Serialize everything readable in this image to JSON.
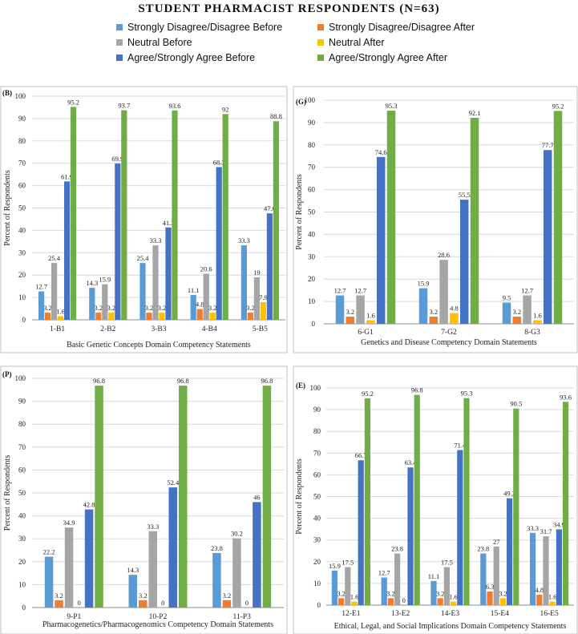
{
  "title": "STUDENT PHARMACIST RESPONDENTS (N=63)",
  "legend": [
    {
      "label": "Strongly Disagree/Disagree Before",
      "color": "#5b9bd5"
    },
    {
      "label": "Strongly Disagree/Disagree After",
      "color": "#ed7d31"
    },
    {
      "label": "Neutral Before",
      "color": "#a5a5a5"
    },
    {
      "label": "Neutral After",
      "color": "#ffc000"
    },
    {
      "label": "Agree/Strongly Agree Before",
      "color": "#4472c4"
    },
    {
      "label": "Agree/Strongly Agree After",
      "color": "#70ad47"
    }
  ],
  "chart_data": [
    {
      "type": "bar",
      "panel_label": "(B)",
      "xlabel": "Basic Genetic Concepts Domain Competency Statements",
      "ylabel": "Percent of Respondents",
      "ylim": [
        0,
        100
      ],
      "yticks": [
        "0",
        "10",
        "20",
        "30",
        "40",
        "50",
        "60",
        "70",
        "80",
        "90",
        "100"
      ],
      "categories": [
        "1-B1",
        "2-B2",
        "3-B3",
        "4-B4",
        "5-B5"
      ],
      "series": [
        {
          "name": "Strongly Disagree/Disagree Before",
          "values": [
            12.7,
            14.3,
            25.4,
            11.1,
            33.3
          ],
          "labels": [
            "12.7",
            "14.3",
            "25.4",
            "11.1",
            "33.3"
          ]
        },
        {
          "name": "Strongly Disagree/Disagree After",
          "values": [
            3.2,
            3.2,
            3.2,
            4.8,
            3.2
          ],
          "labels": [
            "3.2",
            "3.2",
            "3.2",
            "4.8",
            "3.2"
          ]
        },
        {
          "name": "Neutral Before",
          "values": [
            25.4,
            15.9,
            33.3,
            20.6,
            19
          ],
          "labels": [
            "25.4",
            "15.9",
            "33.3",
            "20.6",
            "19"
          ]
        },
        {
          "name": "Neutral After",
          "values": [
            1.6,
            3.2,
            3.2,
            3.2,
            7.9
          ],
          "labels": [
            "1.6",
            "3.2",
            "3.2",
            "3.2",
            "7.9"
          ]
        },
        {
          "name": "Agree/Strongly Agree Before",
          "values": [
            61.9,
            69.9,
            41.3,
            68.3,
            47.6
          ],
          "labels": [
            "61.9",
            "69.9",
            "41.3",
            "68.3",
            "47.6"
          ]
        },
        {
          "name": "Agree/Strongly Agree After",
          "values": [
            95.2,
            93.7,
            93.6,
            92,
            88.8
          ],
          "labels": [
            "95.2",
            "93.7",
            "93.6",
            "92",
            "88.8"
          ]
        }
      ]
    },
    {
      "type": "bar",
      "panel_label": "(G)",
      "xlabel": "Genetics and Disease Competency Domain Statements",
      "ylabel": "Percent of Respondents",
      "ylim": [
        0,
        100
      ],
      "yticks": [
        "0",
        "10",
        "20",
        "30",
        "40",
        "50",
        "60",
        "70",
        "80",
        "90",
        "100"
      ],
      "categories": [
        "6-G1",
        "7-G2",
        "8-G3"
      ],
      "series": [
        {
          "name": "Strongly Disagree/Disagree Before",
          "values": [
            12.7,
            15.9,
            9.5
          ],
          "labels": [
            "12.7",
            "15.9",
            "9.5"
          ]
        },
        {
          "name": "Strongly Disagree/Disagree After",
          "values": [
            3.2,
            3.2,
            3.2
          ],
          "labels": [
            "3.2",
            "3.2",
            "3.2"
          ]
        },
        {
          "name": "Neutral Before",
          "values": [
            12.7,
            28.6,
            12.7
          ],
          "labels": [
            "12.7",
            "28.6",
            "12.7"
          ]
        },
        {
          "name": "Neutral After",
          "values": [
            1.6,
            4.8,
            1.6
          ],
          "labels": [
            "1.6",
            "4.8",
            "1.6"
          ]
        },
        {
          "name": "Agree/Strongly Agree Before",
          "values": [
            74.6,
            55.5,
            77.7
          ],
          "labels": [
            "74.6",
            "55.5",
            "77.7"
          ]
        },
        {
          "name": "Agree/Strongly Agree After",
          "values": [
            95.3,
            92.1,
            95.2
          ],
          "labels": [
            "95.3",
            "92.1",
            "95.2"
          ]
        }
      ]
    },
    {
      "type": "bar",
      "panel_label": "(P)",
      "xlabel": "Pharmacogenetics/Pharmacogenomics Competency Domain Statements",
      "ylabel": "Percent of Respondents",
      "ylim": [
        0,
        100
      ],
      "yticks": [
        "0",
        "10",
        "20",
        "30",
        "40",
        "50",
        "60",
        "70",
        "80",
        "90",
        "100"
      ],
      "categories": [
        "9-P1",
        "10-P2",
        "11-P3"
      ],
      "series": [
        {
          "name": "Strongly Disagree/Disagree Before",
          "values": [
            22.2,
            14.3,
            23.8
          ],
          "labels": [
            "22.2",
            "14.3",
            "23.8"
          ]
        },
        {
          "name": "Strongly Disagree/Disagree After",
          "values": [
            3.2,
            3.2,
            3.2
          ],
          "labels": [
            "3.2",
            "3.2",
            "3.2"
          ]
        },
        {
          "name": "Neutral Before",
          "values": [
            34.9,
            33.3,
            30.2
          ],
          "labels": [
            "34.9",
            "33.3",
            "30.2"
          ]
        },
        {
          "name": "Neutral After",
          "values": [
            0,
            0,
            0
          ],
          "labels": [
            "0",
            "0",
            "0"
          ]
        },
        {
          "name": "Agree/Strongly Agree Before",
          "values": [
            42.8,
            52.4,
            46
          ],
          "labels": [
            "42.8",
            "52.4",
            "46"
          ]
        },
        {
          "name": "Agree/Strongly Agree After",
          "values": [
            96.8,
            96.8,
            96.8
          ],
          "labels": [
            "96.8",
            "96.8",
            "96.8"
          ]
        }
      ]
    },
    {
      "type": "bar",
      "panel_label": "(E)",
      "xlabel": "Ethical, Legal, and Social Implications Domain Competency Statements",
      "ylabel": "Percent of Respondents",
      "ylim": [
        0,
        100
      ],
      "yticks": [
        "0",
        "10",
        "20",
        "30",
        "40",
        "50",
        "60",
        "70",
        "80",
        "90",
        "100"
      ],
      "categories": [
        "12-E1",
        "13-E2",
        "14-E3",
        "15-E4",
        "16-E5"
      ],
      "series": [
        {
          "name": "Strongly Disagree/Disagree Before",
          "values": [
            15.9,
            12.7,
            11.1,
            23.8,
            33.3
          ],
          "labels": [
            "15.9",
            "12.7",
            "11.1",
            "23.8",
            "33.3"
          ]
        },
        {
          "name": "Strongly Disagree/Disagree After",
          "values": [
            3.2,
            3.2,
            3.2,
            6.3,
            4.8
          ],
          "labels": [
            "3.2",
            "3.2",
            "3.2",
            "6.3",
            "4.8"
          ]
        },
        {
          "name": "Neutral Before",
          "values": [
            17.5,
            23.8,
            17.5,
            27,
            31.7
          ],
          "labels": [
            "17.5",
            "23.8",
            "17.5",
            "27",
            "31.7"
          ]
        },
        {
          "name": "Neutral After",
          "values": [
            1.6,
            0,
            1.6,
            3.2,
            1.6
          ],
          "labels": [
            "1.6",
            "0",
            "1.6",
            "3.2",
            "1.6"
          ]
        },
        {
          "name": "Agree/Strongly Agree Before",
          "values": [
            66.7,
            63.4,
            71.4,
            49.2,
            34.9
          ],
          "labels": [
            "66.7",
            "63.4",
            "71.4",
            "49.2",
            "34.9"
          ]
        },
        {
          "name": "Agree/Strongly Agree After",
          "values": [
            95.2,
            96.8,
            95.3,
            90.5,
            93.6
          ],
          "labels": [
            "95.2",
            "96.8",
            "95.3",
            "90.5",
            "93.6"
          ]
        }
      ]
    }
  ]
}
